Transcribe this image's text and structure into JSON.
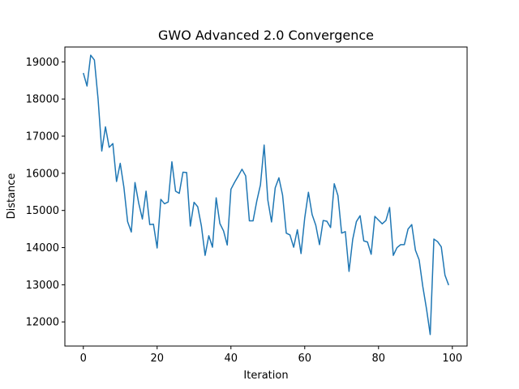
{
  "chart_data": {
    "type": "line",
    "title": "GWO Advanced 2.0 Convergence",
    "xlabel": "Iteration",
    "ylabel": "Distance",
    "xlim": [
      -5,
      104
    ],
    "ylim": [
      11350,
      19400
    ],
    "xticks": [
      0,
      20,
      40,
      60,
      80,
      100
    ],
    "yticks": [
      12000,
      13000,
      14000,
      15000,
      16000,
      17000,
      18000,
      19000
    ],
    "grid": false,
    "legend": "none",
    "series": [
      {
        "color": "#1f77b4",
        "x": [
          0,
          1,
          2,
          3,
          4,
          5,
          6,
          7,
          8,
          9,
          10,
          11,
          12,
          13,
          14,
          15,
          16,
          17,
          18,
          19,
          20,
          21,
          22,
          23,
          24,
          25,
          26,
          27,
          28,
          29,
          30,
          31,
          32,
          33,
          34,
          35,
          36,
          37,
          38,
          39,
          40,
          41,
          42,
          43,
          44,
          45,
          46,
          47,
          48,
          49,
          50,
          51,
          52,
          53,
          54,
          55,
          56,
          57,
          58,
          59,
          60,
          61,
          62,
          63,
          64,
          65,
          66,
          67,
          68,
          69,
          70,
          71,
          72,
          73,
          74,
          75,
          76,
          77,
          78,
          79,
          80,
          81,
          82,
          83,
          84,
          85,
          86,
          87,
          88,
          89,
          90,
          91,
          92,
          93,
          94,
          95,
          96,
          97,
          98,
          99
        ],
        "values": [
          18700,
          18350,
          19180,
          19050,
          18000,
          16600,
          17250,
          16700,
          16800,
          15780,
          16270,
          15620,
          14700,
          14420,
          15750,
          15200,
          14770,
          15520,
          14620,
          14630,
          13990,
          15300,
          15180,
          15230,
          16310,
          15520,
          15460,
          16030,
          16020,
          14580,
          15220,
          15100,
          14580,
          13790,
          14320,
          14010,
          15340,
          14650,
          14450,
          14070,
          15570,
          15760,
          15930,
          16110,
          15930,
          14720,
          14720,
          15250,
          15690,
          16760,
          15280,
          14690,
          15610,
          15880,
          15410,
          14390,
          14340,
          14010,
          14480,
          13840,
          14800,
          15490,
          14890,
          14600,
          14080,
          14730,
          14710,
          14540,
          15720,
          15400,
          14390,
          14430,
          13360,
          14220,
          14700,
          14860,
          14180,
          14150,
          13820,
          14840,
          14740,
          14640,
          14730,
          15080,
          13790,
          14000,
          14080,
          14080,
          14500,
          14620,
          13930,
          13670,
          12950,
          12350,
          11660,
          14230,
          14160,
          14020,
          13260,
          12990
        ]
      }
    ]
  }
}
